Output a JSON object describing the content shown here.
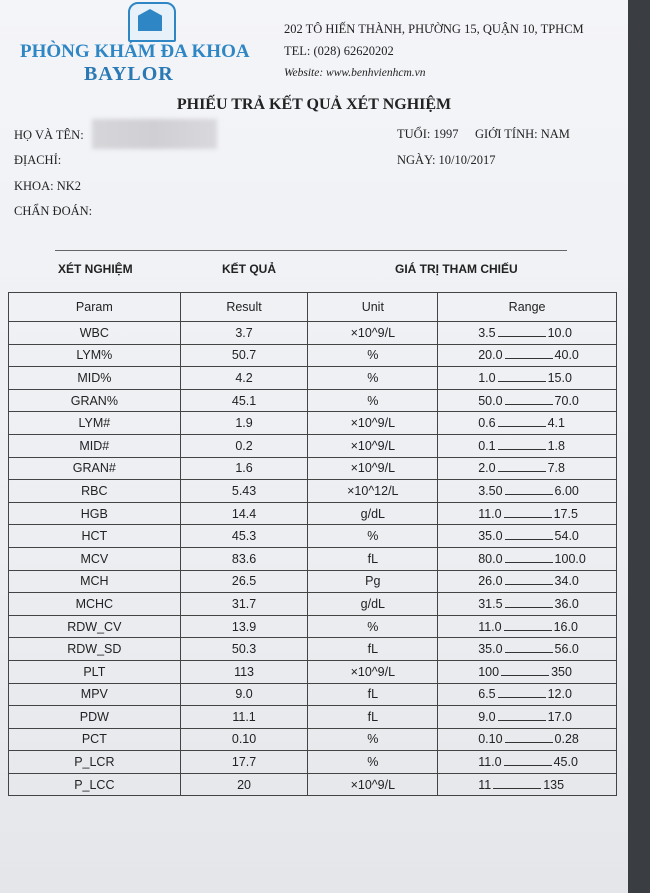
{
  "header": {
    "logo_text": "BAYLOR",
    "clinic_line1": "PHÒNG KHÁM ĐA KHOA",
    "clinic_line2": "BAYLOR",
    "address": "202 TÔ HIẾN THÀNH, PHƯỜNG 15, QUẬN 10, TPHCM",
    "tel": "TEL: (028) 62620202",
    "website": "Website: www.benhvienhcm.vn"
  },
  "title": "PHIẾU TRẢ KẾT QUẢ XÉT NGHIỆM",
  "patient": {
    "name_label": "HỌ VÀ TÊN:",
    "address_label": "ĐỊACHỈ:",
    "dept": "KHOA: NK2",
    "diagnosis_label": "CHẨN ĐOÁN:",
    "age": "TUỔI: 1997",
    "gender": "GIỚI TÍNH: NAM",
    "date": "NGÀY: 10/10/2017"
  },
  "sections": {
    "test": "XÉT NGHIỆM",
    "result": "KẾT QUẢ",
    "reference": "GIÁ TRỊ THAM CHIẾU"
  },
  "table": {
    "columns": [
      "Param",
      "Result",
      "Unit",
      "Range"
    ],
    "rows": [
      {
        "param": "WBC",
        "result": "3.7",
        "unit": "×10^9/L",
        "low": "3.5",
        "high": "10.0"
      },
      {
        "param": "LYM%",
        "result": "50.7",
        "unit": "%",
        "low": "20.0",
        "high": "40.0"
      },
      {
        "param": "MID%",
        "result": "4.2",
        "unit": "%",
        "low": "1.0",
        "high": "15.0"
      },
      {
        "param": "GRAN%",
        "result": "45.1",
        "unit": "%",
        "low": "50.0",
        "high": "70.0"
      },
      {
        "param": "LYM#",
        "result": "1.9",
        "unit": "×10^9/L",
        "low": "0.6",
        "high": "4.1"
      },
      {
        "param": "MID#",
        "result": "0.2",
        "unit": "×10^9/L",
        "low": "0.1",
        "high": "1.8"
      },
      {
        "param": "GRAN#",
        "result": "1.6",
        "unit": "×10^9/L",
        "low": "2.0",
        "high": "7.8"
      },
      {
        "param": "RBC",
        "result": "5.43",
        "unit": "×10^12/L",
        "low": "3.50",
        "high": "6.00"
      },
      {
        "param": "HGB",
        "result": "14.4",
        "unit": "g/dL",
        "low": "11.0",
        "high": "17.5"
      },
      {
        "param": "HCT",
        "result": "45.3",
        "unit": "%",
        "low": "35.0",
        "high": "54.0"
      },
      {
        "param": "MCV",
        "result": "83.6",
        "unit": "fL",
        "low": "80.0",
        "high": "100.0"
      },
      {
        "param": "MCH",
        "result": "26.5",
        "unit": "Pg",
        "low": "26.0",
        "high": "34.0"
      },
      {
        "param": "MCHC",
        "result": "31.7",
        "unit": "g/dL",
        "low": "31.5",
        "high": "36.0"
      },
      {
        "param": "RDW_CV",
        "result": "13.9",
        "unit": "%",
        "low": "11.0",
        "high": "16.0"
      },
      {
        "param": "RDW_SD",
        "result": "50.3",
        "unit": "fL",
        "low": "35.0",
        "high": "56.0"
      },
      {
        "param": "PLT",
        "result": "113",
        "unit": "×10^9/L",
        "low": "100",
        "high": "350"
      },
      {
        "param": "MPV",
        "result": "9.0",
        "unit": "fL",
        "low": "6.5",
        "high": "12.0"
      },
      {
        "param": "PDW",
        "result": "11.1",
        "unit": "fL",
        "low": "9.0",
        "high": "17.0"
      },
      {
        "param": "PCT",
        "result": "0.10",
        "unit": "%",
        "low": "0.10",
        "high": "0.28"
      },
      {
        "param": "P_LCR",
        "result": "17.7",
        "unit": "%",
        "low": "11.0",
        "high": "45.0"
      },
      {
        "param": "P_LCC",
        "result": "20",
        "unit": "×10^9/L",
        "low": "11",
        "high": "135"
      }
    ]
  }
}
